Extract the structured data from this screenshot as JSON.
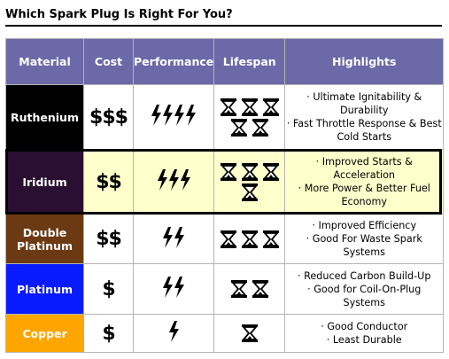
{
  "page": {
    "title": "Which Spark Plug Is Right For You?"
  },
  "table": {
    "headers": [
      "Material",
      "Cost",
      "Performance",
      "Lifespan",
      "Highlights"
    ],
    "rows": [
      {
        "material": "Ruthenium",
        "color": "#000000",
        "cost": "$$$",
        "performance_bolts": 4,
        "lifespan_glasses": 5,
        "highlights": [
          "· Ultimate Ignitability & Durability",
          "· Fast Throttle Response & Best Cold Starts"
        ]
      },
      {
        "material": "Iridium",
        "color": "#2b0f33",
        "cost": "$$",
        "performance_bolts": 3,
        "lifespan_glasses": 4,
        "highlights": [
          "· Improved Starts & Acceleration",
          "· More Power & Better Fuel Economy"
        ]
      },
      {
        "material": "Double Platinum",
        "color": "#6b3a12",
        "cost": "$$",
        "performance_bolts": 2,
        "lifespan_glasses": 3,
        "highlights": [
          "· Improved Efficiency",
          "· Good For Waste Spark Systems"
        ]
      },
      {
        "material": "Platinum",
        "color": "#0a1aff",
        "cost": "$",
        "performance_bolts": 2,
        "lifespan_glasses": 2,
        "highlights": [
          "· Reduced Carbon Build-Up",
          "· Good for Coil-On-Plug Systems"
        ]
      },
      {
        "material": "Copper",
        "color": "#ffa500",
        "cost": "$",
        "performance_bolts": 1,
        "lifespan_glasses": 1,
        "highlights": [
          "· Good Conductor",
          "· Least Durable"
        ]
      }
    ]
  },
  "icons": {
    "performance": "lightning-bolt-icon",
    "lifespan": "hourglass-icon"
  },
  "colors": {
    "header_bg": "#6c69a8",
    "highlight_row_bg": "#ffffcc"
  }
}
